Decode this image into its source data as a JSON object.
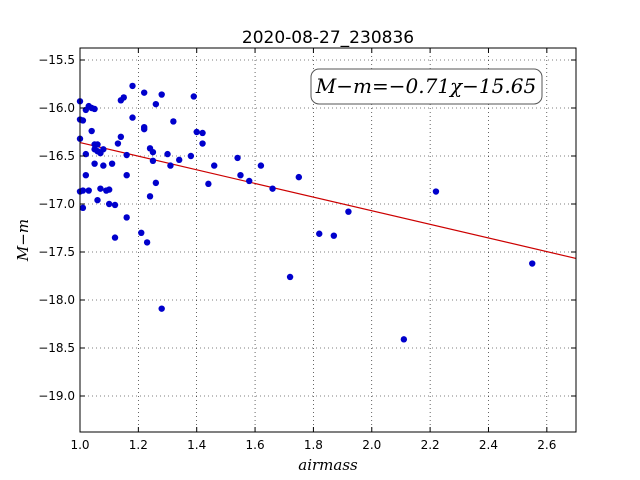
{
  "chart_data": {
    "type": "scatter",
    "title": "2020-08-27_230836",
    "xlabel": "airmass",
    "ylabel": "M−m",
    "xlim": [
      1.0,
      2.7
    ],
    "ylim": [
      -19.375,
      -15.375
    ],
    "y_inverted": false,
    "grid": true,
    "x_ticks": [
      1.0,
      1.2,
      1.4,
      1.6,
      1.8,
      2.0,
      2.2,
      2.4,
      2.6
    ],
    "x_tick_labels": [
      "1.0",
      "1.2",
      "1.4",
      "1.6",
      "1.8",
      "2.0",
      "2.2",
      "2.4",
      "2.6"
    ],
    "y_ticks": [
      -15.5,
      -16.0,
      -16.5,
      -17.0,
      -17.5,
      -18.0,
      -18.5,
      -19.0
    ],
    "y_tick_labels": [
      "−15.5",
      "−16.0",
      "−16.5",
      "−17.0",
      "−17.5",
      "−18.0",
      "−18.5",
      "−19.0"
    ],
    "annotation": "M−m=−0.71χ−15.65",
    "colors": {
      "points": "#0000cc",
      "fit": "#cc0000"
    },
    "fit": {
      "slope": -0.71,
      "intercept": -15.65
    },
    "series": [
      {
        "points": [
          [
            1.0,
            -15.93
          ],
          [
            1.0,
            -16.12
          ],
          [
            1.01,
            -16.13
          ],
          [
            1.0,
            -16.32
          ],
          [
            1.02,
            -16.48
          ],
          [
            1.01,
            -16.86
          ],
          [
            1.03,
            -16.86
          ],
          [
            1.02,
            -16.7
          ],
          [
            1.0,
            -16.87
          ],
          [
            1.01,
            -17.04
          ],
          [
            1.02,
            -16.02
          ],
          [
            1.03,
            -15.98
          ],
          [
            1.04,
            -16.0
          ],
          [
            1.04,
            -16.24
          ],
          [
            1.05,
            -16.01
          ],
          [
            1.05,
            -16.38
          ],
          [
            1.05,
            -16.43
          ],
          [
            1.06,
            -16.38
          ],
          [
            1.07,
            -16.47
          ],
          [
            1.06,
            -16.45
          ],
          [
            1.08,
            -16.43
          ],
          [
            1.08,
            -16.6
          ],
          [
            1.05,
            -16.58
          ],
          [
            1.06,
            -16.96
          ],
          [
            1.07,
            -16.84
          ],
          [
            1.09,
            -16.86
          ],
          [
            1.1,
            -16.85
          ],
          [
            1.1,
            -17.0
          ],
          [
            1.12,
            -17.01
          ],
          [
            1.11,
            -16.58
          ],
          [
            1.12,
            -17.35
          ],
          [
            1.13,
            -16.37
          ],
          [
            1.14,
            -16.3
          ],
          [
            1.14,
            -15.92
          ],
          [
            1.15,
            -15.89
          ],
          [
            1.16,
            -16.49
          ],
          [
            1.16,
            -16.7
          ],
          [
            1.16,
            -17.14
          ],
          [
            1.18,
            -15.77
          ],
          [
            1.18,
            -16.1
          ],
          [
            1.22,
            -15.84
          ],
          [
            1.22,
            -16.2
          ],
          [
            1.22,
            -16.22
          ],
          [
            1.21,
            -17.3
          ],
          [
            1.23,
            -17.4
          ],
          [
            1.24,
            -16.42
          ],
          [
            1.25,
            -16.46
          ],
          [
            1.25,
            -16.55
          ],
          [
            1.24,
            -16.92
          ],
          [
            1.26,
            -16.78
          ],
          [
            1.26,
            -15.96
          ],
          [
            1.28,
            -15.86
          ],
          [
            1.28,
            -18.09
          ],
          [
            1.3,
            -16.48
          ],
          [
            1.31,
            -16.6
          ],
          [
            1.32,
            -16.14
          ],
          [
            1.34,
            -16.54
          ],
          [
            1.38,
            -16.5
          ],
          [
            1.39,
            -15.88
          ],
          [
            1.4,
            -16.25
          ],
          [
            1.42,
            -16.26
          ],
          [
            1.42,
            -16.37
          ],
          [
            1.44,
            -16.79
          ],
          [
            1.46,
            -16.6
          ],
          [
            1.54,
            -16.52
          ],
          [
            1.55,
            -16.7
          ],
          [
            1.58,
            -16.76
          ],
          [
            1.62,
            -16.6
          ],
          [
            1.66,
            -16.84
          ],
          [
            1.72,
            -17.76
          ],
          [
            1.75,
            -16.72
          ],
          [
            1.82,
            -17.31
          ],
          [
            1.87,
            -17.33
          ],
          [
            1.92,
            -17.08
          ],
          [
            2.11,
            -18.41
          ],
          [
            2.22,
            -16.87
          ],
          [
            2.55,
            -17.62
          ]
        ]
      }
    ]
  }
}
